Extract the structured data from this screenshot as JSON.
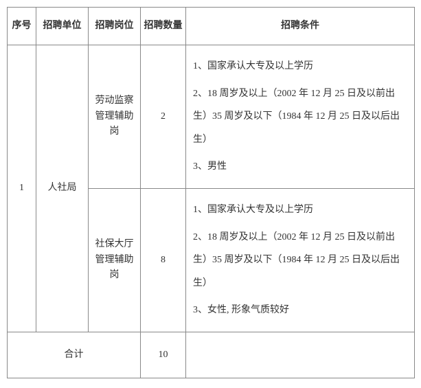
{
  "header": {
    "col_idx": "序号",
    "col_org": "招聘单位",
    "col_pos": "招聘岗位",
    "col_qty": "招聘数量",
    "col_cond": "招聘条件"
  },
  "rows": [
    {
      "idx": "1",
      "org": "人社局",
      "positions": [
        {
          "name_l1": "劳动监察",
          "name_l2": "管理辅助岗",
          "qty": "2",
          "cond1": "1、国家承认大专及以上学历",
          "cond2": "2、18 周岁及以上（2002 年 12 月 25 日及以前出生）35 周岁及以下（1984 年 12 月 25 日及以后出生）",
          "cond3": "3、男性"
        },
        {
          "name_l1": "社保大厅",
          "name_l2": "管理辅助岗",
          "qty": "8",
          "cond1": "1、国家承认大专及以上学历",
          "cond2": "2、18 周岁及以上（2002 年 12 月 25 日及以前出生）35 周岁及以下（1984 年 12 月 25 日及以后出生）",
          "cond3": "3、女性, 形象气质较好"
        }
      ]
    }
  ],
  "footer": {
    "label": "合计",
    "total": "10"
  }
}
